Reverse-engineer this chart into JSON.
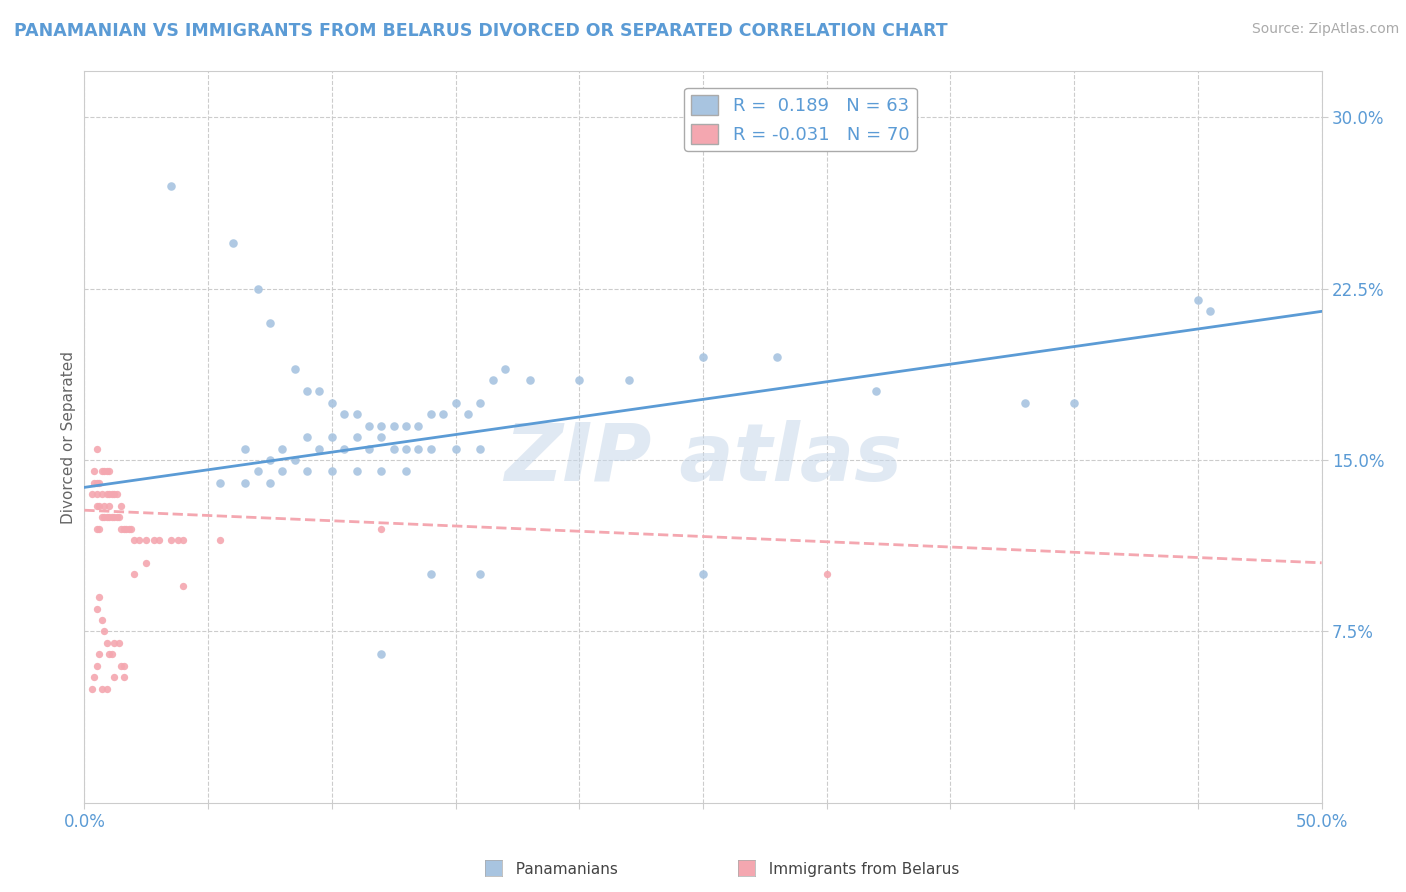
{
  "title": "PANAMANIAN VS IMMIGRANTS FROM BELARUS DIVORCED OR SEPARATED CORRELATION CHART",
  "source": "Source: ZipAtlas.com",
  "ylabel": "Divorced or Separated",
  "xmin": 0.0,
  "xmax": 0.5,
  "ymin": 0.0,
  "ymax": 0.32,
  "ytick_vals": [
    0.075,
    0.15,
    0.225,
    0.3
  ],
  "ytick_labels": [
    "7.5%",
    "15.0%",
    "22.5%",
    "30.0%"
  ],
  "blue_color": "#a8c4e0",
  "pink_color": "#f4a7b0",
  "blue_line_color": "#5b9bd5",
  "pink_line_color": "#f4a7b0",
  "title_color": "#5b9bd5",
  "grid_color": "#cccccc",
  "blue_line_x": [
    0.0,
    0.5
  ],
  "blue_line_y": [
    0.138,
    0.215
  ],
  "pink_line_x": [
    0.0,
    0.5
  ],
  "pink_line_y": [
    0.128,
    0.105
  ],
  "blue_scatter_x": [
    0.035,
    0.06,
    0.07,
    0.075,
    0.085,
    0.09,
    0.095,
    0.1,
    0.105,
    0.11,
    0.115,
    0.12,
    0.125,
    0.13,
    0.135,
    0.14,
    0.145,
    0.15,
    0.155,
    0.16,
    0.165,
    0.17,
    0.18,
    0.2,
    0.22,
    0.25,
    0.38,
    0.455,
    0.08,
    0.09,
    0.1,
    0.11,
    0.12,
    0.13,
    0.14,
    0.15,
    0.16,
    0.07,
    0.08,
    0.09,
    0.1,
    0.11,
    0.12,
    0.13,
    0.28,
    0.065,
    0.075,
    0.085,
    0.095,
    0.105,
    0.115,
    0.125,
    0.135,
    0.055,
    0.065,
    0.075,
    0.32,
    0.4,
    0.45,
    0.25,
    0.16,
    0.14,
    0.12
  ],
  "blue_scatter_y": [
    0.27,
    0.245,
    0.225,
    0.21,
    0.19,
    0.18,
    0.18,
    0.175,
    0.17,
    0.17,
    0.165,
    0.165,
    0.165,
    0.165,
    0.165,
    0.17,
    0.17,
    0.175,
    0.17,
    0.175,
    0.185,
    0.19,
    0.185,
    0.185,
    0.185,
    0.195,
    0.175,
    0.215,
    0.155,
    0.16,
    0.16,
    0.16,
    0.16,
    0.155,
    0.155,
    0.155,
    0.155,
    0.145,
    0.145,
    0.145,
    0.145,
    0.145,
    0.145,
    0.145,
    0.195,
    0.155,
    0.15,
    0.15,
    0.155,
    0.155,
    0.155,
    0.155,
    0.155,
    0.14,
    0.14,
    0.14,
    0.18,
    0.175,
    0.22,
    0.1,
    0.1,
    0.1,
    0.065
  ],
  "pink_scatter_x": [
    0.003,
    0.004,
    0.004,
    0.005,
    0.005,
    0.005,
    0.005,
    0.005,
    0.006,
    0.006,
    0.006,
    0.007,
    0.007,
    0.007,
    0.008,
    0.008,
    0.008,
    0.009,
    0.009,
    0.009,
    0.01,
    0.01,
    0.01,
    0.01,
    0.011,
    0.011,
    0.012,
    0.012,
    0.013,
    0.013,
    0.014,
    0.015,
    0.015,
    0.016,
    0.017,
    0.018,
    0.019,
    0.02,
    0.022,
    0.025,
    0.028,
    0.03,
    0.035,
    0.038,
    0.04,
    0.005,
    0.006,
    0.007,
    0.008,
    0.009,
    0.01,
    0.011,
    0.012,
    0.014,
    0.015,
    0.016,
    0.003,
    0.004,
    0.005,
    0.006,
    0.007,
    0.009,
    0.012,
    0.016,
    0.02,
    0.025,
    0.04,
    0.055,
    0.3,
    0.12
  ],
  "pink_scatter_y": [
    0.135,
    0.14,
    0.145,
    0.12,
    0.13,
    0.135,
    0.14,
    0.155,
    0.12,
    0.13,
    0.14,
    0.125,
    0.135,
    0.145,
    0.125,
    0.13,
    0.145,
    0.125,
    0.135,
    0.145,
    0.125,
    0.13,
    0.135,
    0.145,
    0.125,
    0.135,
    0.125,
    0.135,
    0.125,
    0.135,
    0.125,
    0.12,
    0.13,
    0.12,
    0.12,
    0.12,
    0.12,
    0.115,
    0.115,
    0.115,
    0.115,
    0.115,
    0.115,
    0.115,
    0.115,
    0.085,
    0.09,
    0.08,
    0.075,
    0.07,
    0.065,
    0.065,
    0.07,
    0.07,
    0.06,
    0.055,
    0.05,
    0.055,
    0.06,
    0.065,
    0.05,
    0.05,
    0.055,
    0.06,
    0.1,
    0.105,
    0.095,
    0.115,
    0.1,
    0.12
  ]
}
